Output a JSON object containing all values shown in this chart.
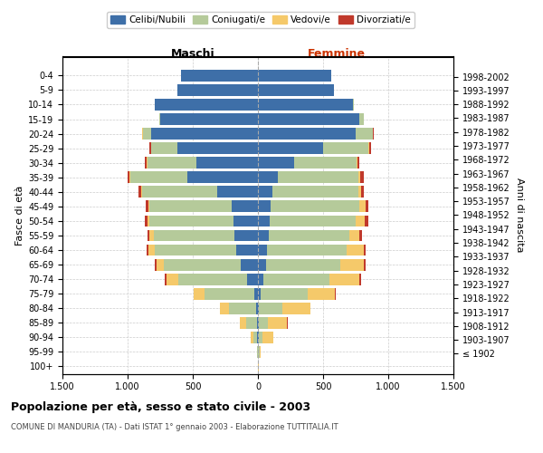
{
  "age_groups": [
    "100+",
    "95-99",
    "90-94",
    "85-89",
    "80-84",
    "75-79",
    "70-74",
    "65-69",
    "60-64",
    "55-59",
    "50-54",
    "45-49",
    "40-44",
    "35-39",
    "30-34",
    "25-29",
    "20-24",
    "15-19",
    "10-14",
    "5-9",
    "0-4"
  ],
  "birth_years": [
    "≤ 1902",
    "1903-1907",
    "1908-1912",
    "1913-1917",
    "1918-1922",
    "1923-1927",
    "1928-1932",
    "1933-1937",
    "1938-1942",
    "1943-1947",
    "1948-1952",
    "1953-1957",
    "1958-1962",
    "1963-1967",
    "1968-1972",
    "1973-1977",
    "1978-1982",
    "1983-1987",
    "1988-1992",
    "1993-1997",
    "1998-2002"
  ],
  "males": {
    "celibi": [
      0,
      2,
      8,
      8,
      12,
      30,
      80,
      130,
      170,
      180,
      190,
      200,
      310,
      540,
      470,
      620,
      820,
      750,
      790,
      620,
      590
    ],
    "coniugati": [
      2,
      5,
      30,
      80,
      210,
      380,
      530,
      590,
      620,
      620,
      640,
      630,
      580,
      440,
      380,
      200,
      65,
      10,
      0,
      0,
      0
    ],
    "vedovi": [
      0,
      3,
      20,
      50,
      70,
      80,
      90,
      60,
      50,
      30,
      20,
      10,
      5,
      3,
      2,
      1,
      1,
      0,
      0,
      0,
      0
    ],
    "divorziati": [
      0,
      0,
      0,
      2,
      3,
      5,
      15,
      15,
      15,
      20,
      20,
      20,
      20,
      20,
      15,
      10,
      5,
      0,
      0,
      0,
      0
    ]
  },
  "females": {
    "nubili": [
      0,
      2,
      5,
      5,
      10,
      20,
      40,
      60,
      70,
      80,
      90,
      100,
      110,
      150,
      280,
      500,
      750,
      780,
      730,
      580,
      560
    ],
    "coniugate": [
      2,
      10,
      30,
      70,
      180,
      360,
      510,
      570,
      610,
      620,
      660,
      680,
      660,
      620,
      480,
      350,
      130,
      30,
      5,
      0,
      0
    ],
    "vedove": [
      2,
      10,
      80,
      150,
      210,
      210,
      230,
      180,
      130,
      80,
      70,
      45,
      25,
      12,
      6,
      5,
      3,
      1,
      0,
      0,
      0
    ],
    "divorziate": [
      0,
      0,
      2,
      3,
      5,
      5,
      15,
      15,
      15,
      20,
      30,
      20,
      20,
      30,
      15,
      10,
      5,
      0,
      0,
      0,
      0
    ]
  },
  "colors": {
    "celibi": "#3e6fa8",
    "coniugati": "#b5ca9a",
    "vedovi": "#f5c96a",
    "divorziati": "#c0392b"
  },
  "title": "Popolazione per età, sesso e stato civile - 2003",
  "subtitle": "COMUNE DI MANDURIA (TA) - Dati ISTAT 1° gennaio 2003 - Elaborazione TUTTITALIA.IT",
  "xlabel_left": "Maschi",
  "xlabel_right": "Femmine",
  "ylabel_left": "Fasce di età",
  "ylabel_right": "Anni di nascita",
  "xlim": 1500,
  "xticks": [
    -1500,
    -1000,
    -500,
    0,
    500,
    1000,
    1500
  ],
  "xticklabels": [
    "1.500",
    "1.000",
    "500",
    "0",
    "500",
    "1.000",
    "1.500"
  ]
}
